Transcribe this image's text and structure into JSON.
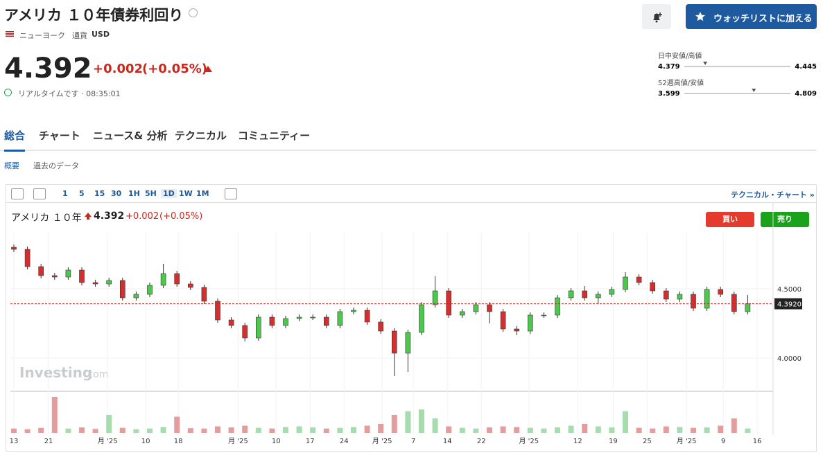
{
  "header": {
    "title": "アメリカ １０年債券利回り",
    "exchange": "ニューヨーク",
    "currency_label": "通貨",
    "currency": "USD",
    "watchlist_button": "ウォッチリストに加える"
  },
  "quote": {
    "price": 4.392,
    "change": "+0.002",
    "change_pct": "(+0.05%)",
    "status": "リアルタイムです · 08:35:01"
  },
  "ranges": {
    "day": {
      "label": "日中安値/高値",
      "low": 4.379,
      "high": 4.445
    },
    "week52": {
      "label": "52週高値/安値",
      "low": 3.599,
      "high": 4.809
    }
  },
  "tabs": [
    "総合",
    "チャート",
    "ニュース& 分析",
    "テクニカル",
    "コミュニティー"
  ],
  "subtabs": [
    "概要",
    "過去のデータ"
  ],
  "toolbar": {
    "intervals": [
      "1",
      "5",
      "15",
      "30",
      "1H",
      "5H",
      "1D",
      "1W",
      "1M"
    ],
    "link": "テクニカル・チャート »"
  },
  "chart_header": {
    "name": "アメリカ １０年",
    "buy": "買い",
    "sell": "売り",
    "watermark": "Investing",
    "watermark_suffix": ".com"
  },
  "chart_data": {
    "type": "candlestick",
    "up_color": "#4cc94c",
    "down_color": "#d42f2f",
    "open": [
      4.8,
      4.785,
      4.66,
      4.595,
      4.585,
      4.635,
      4.545,
      4.535,
      4.56,
      4.435,
      4.46,
      4.525,
      4.61,
      4.535,
      4.51,
      4.41,
      4.275,
      4.235,
      4.145,
      4.295,
      4.235,
      4.285,
      4.295,
      4.295,
      4.235,
      4.335,
      4.345,
      4.26,
      4.195,
      4.035,
      4.185,
      4.385,
      4.485,
      4.31,
      4.335,
      4.385,
      4.335,
      4.21,
      4.195,
      4.31,
      4.31,
      4.435,
      4.485,
      4.435,
      4.46,
      4.495,
      4.585,
      4.545,
      4.485,
      4.425,
      4.46,
      4.36,
      4.495,
      4.46,
      4.335
    ],
    "high": [
      4.82,
      4.805,
      4.68,
      4.615,
      4.655,
      4.655,
      4.565,
      4.58,
      4.58,
      4.48,
      4.545,
      4.68,
      4.63,
      4.555,
      4.53,
      4.43,
      4.295,
      4.255,
      4.315,
      4.315,
      4.305,
      4.315,
      4.315,
      4.315,
      4.355,
      4.365,
      4.365,
      4.28,
      4.215,
      4.205,
      4.405,
      4.59,
      4.505,
      4.355,
      4.405,
      4.405,
      4.355,
      4.23,
      4.33,
      4.33,
      4.455,
      4.505,
      4.52,
      4.48,
      4.515,
      4.62,
      4.605,
      4.565,
      4.505,
      4.48,
      4.48,
      4.515,
      4.515,
      4.48,
      4.455
    ],
    "low": [
      4.765,
      4.64,
      4.575,
      4.565,
      4.565,
      4.525,
      4.515,
      4.515,
      4.415,
      4.415,
      4.44,
      4.505,
      4.515,
      4.49,
      4.39,
      4.255,
      4.215,
      4.12,
      4.125,
      4.215,
      4.215,
      4.265,
      4.275,
      4.215,
      4.215,
      4.315,
      4.24,
      4.175,
      3.87,
      3.9,
      4.165,
      4.365,
      4.29,
      4.29,
      4.315,
      4.25,
      4.19,
      4.165,
      4.175,
      4.29,
      4.29,
      4.415,
      4.415,
      4.39,
      4.44,
      4.475,
      4.525,
      4.465,
      4.405,
      4.405,
      4.34,
      4.34,
      4.44,
      4.315,
      4.315
    ],
    "close": [
      4.785,
      4.66,
      4.595,
      4.585,
      4.635,
      4.545,
      4.535,
      4.56,
      4.435,
      4.46,
      4.525,
      4.61,
      4.535,
      4.51,
      4.41,
      4.275,
      4.235,
      4.145,
      4.295,
      4.235,
      4.285,
      4.295,
      4.295,
      4.235,
      4.335,
      4.345,
      4.26,
      4.195,
      4.035,
      4.185,
      4.385,
      4.485,
      4.31,
      4.335,
      4.385,
      4.335,
      4.21,
      4.195,
      4.31,
      4.31,
      4.435,
      4.485,
      4.435,
      4.46,
      4.495,
      4.585,
      4.545,
      4.485,
      4.425,
      4.46,
      4.36,
      4.495,
      4.46,
      4.335,
      4.392
    ],
    "volume": [
      12,
      10,
      14,
      100,
      12,
      15,
      11,
      50,
      14,
      10,
      12,
      16,
      45,
      13,
      12,
      18,
      15,
      20,
      14,
      12,
      16,
      18,
      15,
      12,
      14,
      16,
      20,
      25,
      50,
      60,
      65,
      40,
      18,
      14,
      12,
      15,
      18,
      16,
      14,
      12,
      15,
      20,
      25,
      18,
      15,
      60,
      14,
      12,
      18,
      16,
      14,
      15,
      20,
      40,
      12
    ],
    "xticks": [
      {
        "value": 0,
        "label": "13"
      },
      {
        "value": 2.55,
        "label": "21"
      },
      {
        "value": 6.9,
        "label": "月 '25"
      },
      {
        "value": 9.7,
        "label": "10"
      },
      {
        "value": 12.1,
        "label": "18"
      },
      {
        "value": 16.5,
        "label": "月 '25"
      },
      {
        "value": 19.3,
        "label": "10"
      },
      {
        "value": 21.8,
        "label": "17"
      },
      {
        "value": 24.3,
        "label": "24"
      },
      {
        "value": 27.1,
        "label": "月 '25"
      },
      {
        "value": 29.4,
        "label": "7"
      },
      {
        "value": 31.9,
        "label": "14"
      },
      {
        "value": 34.4,
        "label": "22"
      },
      {
        "value": 37.9,
        "label": "月 '25"
      },
      {
        "value": 41.5,
        "label": "12"
      },
      {
        "value": 44.1,
        "label": "19"
      },
      {
        "value": 46.6,
        "label": "25"
      },
      {
        "value": 49.5,
        "label": "月 '25"
      },
      {
        "value": 52.2,
        "label": "9"
      },
      {
        "value": 54.7,
        "label": "16"
      }
    ],
    "ylim": [
      3.785,
      4.885
    ],
    "yticks": [
      {
        "value": 4.5,
        "label": "4.5000"
      },
      {
        "value": 4,
        "label": "4.0000"
      }
    ],
    "last_price": {
      "value": 4.392,
      "label": "4.3920"
    }
  }
}
